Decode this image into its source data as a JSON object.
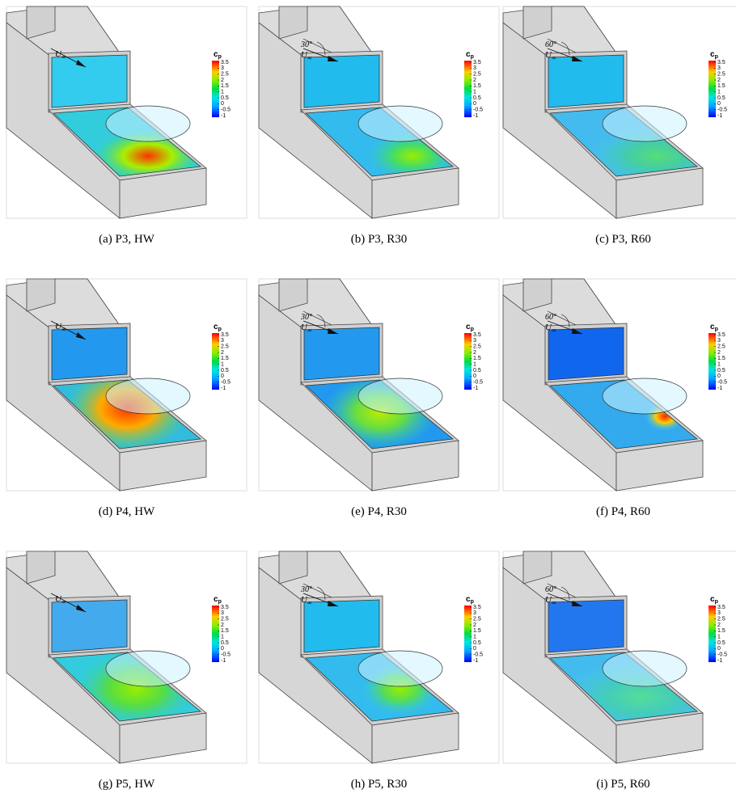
{
  "figure": {
    "panels": [
      {
        "caption": "(a) P3, HW",
        "flow_label": {
          "symbol": "U",
          "subscript": "∞"
        },
        "angle": null,
        "colorbar": {
          "symbol": "c",
          "subscript": "p",
          "ticks": [
            3.5,
            3,
            2.5,
            2,
            1.5,
            1,
            0.5,
            0,
            -0.5,
            -1
          ]
        }
      },
      {
        "caption": "(b) P3, R30",
        "flow_label": {
          "symbol": "U",
          "subscript": "∞"
        },
        "angle": "30°",
        "colorbar": {
          "symbol": "c",
          "subscript": "p",
          "ticks": [
            3.5,
            3,
            2.5,
            2,
            1.5,
            1,
            0.5,
            0,
            -0.5,
            -1
          ]
        }
      },
      {
        "caption": "(c) P3, R60",
        "flow_label": {
          "symbol": "U",
          "subscript": "∞"
        },
        "angle": "60°",
        "colorbar": {
          "symbol": "c",
          "subscript": "p",
          "ticks": [
            3.5,
            3,
            2.5,
            2,
            1.5,
            1,
            0.5,
            0,
            -0.5,
            -1
          ]
        }
      },
      {
        "caption": "(d) P4, HW",
        "flow_label": {
          "symbol": "U",
          "subscript": "∞"
        },
        "angle": null,
        "colorbar": {
          "symbol": "c",
          "subscript": "p",
          "ticks": [
            3.5,
            3,
            2.5,
            2,
            1.5,
            1,
            0.5,
            0,
            -0.5,
            -1
          ]
        }
      },
      {
        "caption": "(e) P4, R30",
        "flow_label": {
          "symbol": "U",
          "subscript": "∞"
        },
        "angle": "30°",
        "colorbar": {
          "symbol": "c",
          "subscript": "p",
          "ticks": [
            3.5,
            3,
            2.5,
            2,
            1.5,
            1,
            0.5,
            0,
            -0.5,
            -1
          ]
        }
      },
      {
        "caption": "(f) P4, R60",
        "flow_label": {
          "symbol": "U",
          "subscript": "∞"
        },
        "angle": "60°",
        "colorbar": {
          "symbol": "c",
          "subscript": "p",
          "ticks": [
            3.5,
            3,
            2.5,
            2,
            1.5,
            1,
            0.5,
            0,
            -0.5,
            -1
          ]
        }
      },
      {
        "caption": "(g) P5, HW",
        "flow_label": {
          "symbol": "U",
          "subscript": "∞"
        },
        "angle": null,
        "colorbar": {
          "symbol": "c",
          "subscript": "p",
          "ticks": [
            3.5,
            3,
            2.5,
            2,
            1.5,
            1,
            0.5,
            0,
            -0.5,
            -1
          ]
        }
      },
      {
        "caption": "(h) P5, R30",
        "flow_label": {
          "symbol": "U",
          "subscript": "∞"
        },
        "angle": "30°",
        "colorbar": {
          "symbol": "c",
          "subscript": "p",
          "ticks": [
            3.5,
            3,
            2.5,
            2,
            1.5,
            1,
            0.5,
            0,
            -0.5,
            -1
          ]
        }
      },
      {
        "caption": "(i) P5, R60",
        "flow_label": {
          "symbol": "U",
          "subscript": "∞"
        },
        "angle": "60°",
        "colorbar": {
          "symbol": "c",
          "subscript": "p",
          "ticks": [
            3.5,
            3,
            2.5,
            2,
            1.5,
            1,
            0.5,
            0,
            -0.5,
            -1
          ]
        }
      }
    ]
  }
}
